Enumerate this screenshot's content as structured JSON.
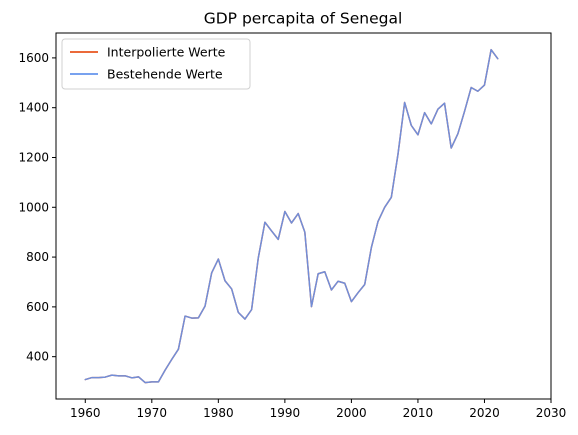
{
  "chart_data": {
    "type": "line",
    "title": "GDP percapita of Senegal",
    "xlabel": "",
    "ylabel": "",
    "xlim": [
      1955.6,
      2030
    ],
    "ylim": [
      230,
      1700
    ],
    "xticks": [
      1960,
      1970,
      1980,
      1990,
      2000,
      2010,
      2020,
      2030
    ],
    "yticks": [
      400,
      600,
      800,
      1000,
      1200,
      1400,
      1600
    ],
    "grid": false,
    "legend_position": "top-left",
    "legend": [
      "Interpolierte Werte",
      "Bestehende Werte"
    ],
    "x": [
      1960,
      1961,
      1962,
      1963,
      1964,
      1965,
      1966,
      1967,
      1968,
      1969,
      1970,
      1971,
      1972,
      1973,
      1974,
      1975,
      1976,
      1977,
      1978,
      1979,
      1980,
      1981,
      1982,
      1983,
      1984,
      1985,
      1986,
      1987,
      1988,
      1989,
      1990,
      1991,
      1992,
      1993,
      1994,
      1995,
      1996,
      1997,
      1998,
      1999,
      2000,
      2001,
      2002,
      2003,
      2004,
      2005,
      2006,
      2007,
      2008,
      2009,
      2010,
      2011,
      2012,
      2013,
      2014,
      2015,
      2016,
      2017,
      2018,
      2019,
      2020,
      2021,
      2022
    ],
    "series": [
      {
        "name": "Interpolierte Werte",
        "color": "#e8541e",
        "values": [
          308,
          316,
          316,
          318,
          326,
          323,
          323,
          315,
          319,
          296,
          299,
          299,
          346,
          389,
          430,
          563,
          555,
          556,
          603,
          737,
          792,
          705,
          672,
          578,
          551,
          589,
          796,
          940,
          905,
          871,
          983,
          937,
          975,
          900,
          601,
          733,
          741,
          668,
          703,
          695,
          621,
          657,
          690,
          838,
          943,
          1000,
          1040,
          1213,
          1421,
          1329,
          1291,
          1380,
          1335,
          1394,
          1418,
          1238,
          1295,
          1385,
          1481,
          1466,
          1491,
          1633,
          1597
        ]
      },
      {
        "name": "Bestehende Werte",
        "color": "#6495ed",
        "values": [
          308,
          316,
          316,
          318,
          326,
          323,
          323,
          315,
          319,
          296,
          299,
          299,
          346,
          389,
          430,
          563,
          555,
          556,
          603,
          737,
          792,
          705,
          672,
          578,
          551,
          589,
          796,
          940,
          905,
          871,
          983,
          937,
          975,
          900,
          601,
          733,
          741,
          668,
          703,
          695,
          621,
          657,
          690,
          838,
          943,
          1000,
          1040,
          1213,
          1421,
          1329,
          1291,
          1380,
          1335,
          1394,
          1418,
          1238,
          1295,
          1385,
          1481,
          1466,
          1491,
          1633,
          1597
        ]
      }
    ]
  }
}
